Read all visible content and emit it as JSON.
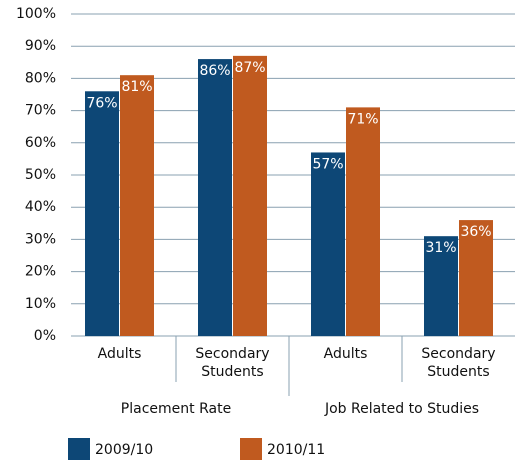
{
  "chart_data": {
    "type": "bar",
    "categories": [
      "Adults",
      "Secondary Students",
      "Adults",
      "Secondary Students"
    ],
    "group_labels": [
      "Placement Rate",
      "Job Related to Studies"
    ],
    "series": [
      {
        "name": "2009/10",
        "color": "#0d4776",
        "values": [
          76,
          86,
          57,
          31
        ],
        "value_labels": [
          "76%",
          "86%",
          "57%",
          "31%"
        ]
      },
      {
        "name": "2010/11",
        "color": "#c05a1f",
        "values": [
          81,
          87,
          71,
          36
        ],
        "value_labels": [
          "81%",
          "87%",
          "71%",
          "36%"
        ]
      }
    ],
    "ylim": [
      0,
      100
    ],
    "yticks": [
      {
        "value": 0,
        "label": "0%"
      },
      {
        "value": 10,
        "label": "10%"
      },
      {
        "value": 20,
        "label": "20%"
      },
      {
        "value": 30,
        "label": "30%"
      },
      {
        "value": 40,
        "label": "40%"
      },
      {
        "value": 50,
        "label": "50%"
      },
      {
        "value": 60,
        "label": "60%"
      },
      {
        "value": 70,
        "label": "70%"
      },
      {
        "value": 80,
        "label": "80%"
      },
      {
        "value": 90,
        "label": "90%"
      },
      {
        "value": 100,
        "label": "100%"
      }
    ],
    "grid": true
  }
}
